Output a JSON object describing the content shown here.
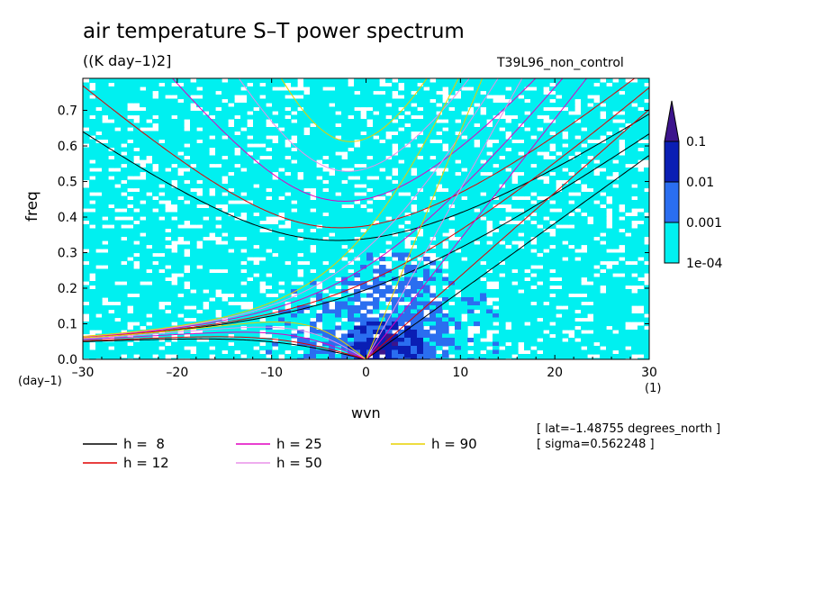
{
  "title": "air temperature S–T power spectrum",
  "units": "((K day–1)2]",
  "run_name": "T39L96_non_control",
  "meta": [
    "[ lat=–1.48755 degrees_north ]",
    "[ sigma=0.562248 ]"
  ],
  "chart_data": {
    "type": "heatmap",
    "xlabel": "wvn",
    "ylabel": "freq",
    "x_unit": "(1)",
    "y_unit": "(day–1)",
    "xlim": [
      -30,
      30
    ],
    "ylim": [
      0,
      0.79
    ],
    "x_ticks": [
      -30,
      -20,
      -10,
      0,
      10,
      20,
      30
    ],
    "x_tick_labels": [
      "–30",
      "–20",
      "–10",
      "0",
      "10",
      "20",
      "30"
    ],
    "y_ticks": [
      0.0,
      0.1,
      0.2,
      0.3,
      0.4,
      0.5,
      0.6,
      0.7
    ],
    "y_tick_labels": [
      "0.0",
      "0.1",
      "0.2",
      "0.3",
      "0.4",
      "0.5",
      "0.6",
      "0.7"
    ],
    "color_scale": {
      "levels": [
        "1e-04",
        "0.001",
        "0.01",
        "0.1"
      ],
      "colors": [
        "#00f0f0",
        "#2a6ef0",
        "#0a1eb4",
        "#3c148c"
      ]
    },
    "dispersion_curves": [
      {
        "label": "h =  8",
        "h": 8,
        "color": "#000000"
      },
      {
        "label": "h = 12",
        "h": 12,
        "color": "#e00000"
      },
      {
        "label": "h = 25",
        "h": 25,
        "color": "#e000c0"
      },
      {
        "label": "h = 50",
        "h": 50,
        "color": "#e890e8"
      },
      {
        "label": "h = 90",
        "h": 90,
        "color": "#e8d000"
      }
    ]
  }
}
